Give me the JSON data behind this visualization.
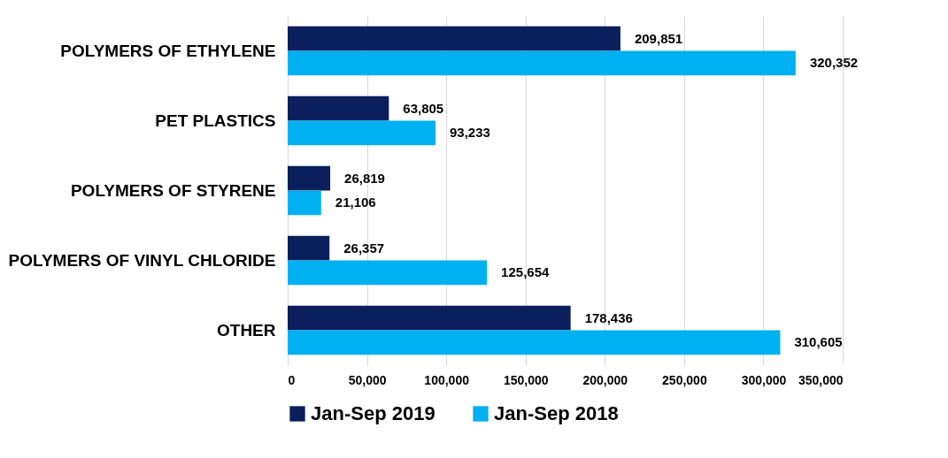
{
  "chart_data": {
    "type": "bar",
    "orientation": "horizontal",
    "categories": [
      "POLYMERS OF ETHYLENE",
      "PET PLASTICS",
      "POLYMERS OF STYRENE",
      "POLYMERS OF VINYL CHLORIDE",
      "OTHER"
    ],
    "series": [
      {
        "name": "Jan-Sep 2019",
        "color": "#0a1f5c",
        "values": [
          209851,
          63805,
          26819,
          26357,
          178436
        ],
        "value_labels": [
          "209,851",
          "63,805",
          "26,819",
          "26,357",
          "178,436"
        ]
      },
      {
        "name": "Jan-Sep 2018",
        "color": "#00b0f0",
        "values": [
          320352,
          93233,
          21106,
          125654,
          310605
        ],
        "value_labels": [
          "320,352",
          "93,233",
          "21,106",
          "125,654",
          "310,605"
        ]
      }
    ],
    "xlim": [
      0,
      350000
    ],
    "xticks": [
      0,
      {
        "value": 50000,
        "label": "50,000"
      },
      {
        "value": 100000,
        "label": "100,000"
      },
      {
        "value": 150000,
        "label": "150,000"
      },
      {
        "value": 200000,
        "label": "200,000"
      },
      {
        "value": 250000,
        "label": "250,000"
      },
      {
        "value": 300000,
        "label": "300,000"
      },
      {
        "value": 350000,
        "label": "350,000"
      }
    ],
    "grid": "x",
    "legend": "bottom"
  }
}
